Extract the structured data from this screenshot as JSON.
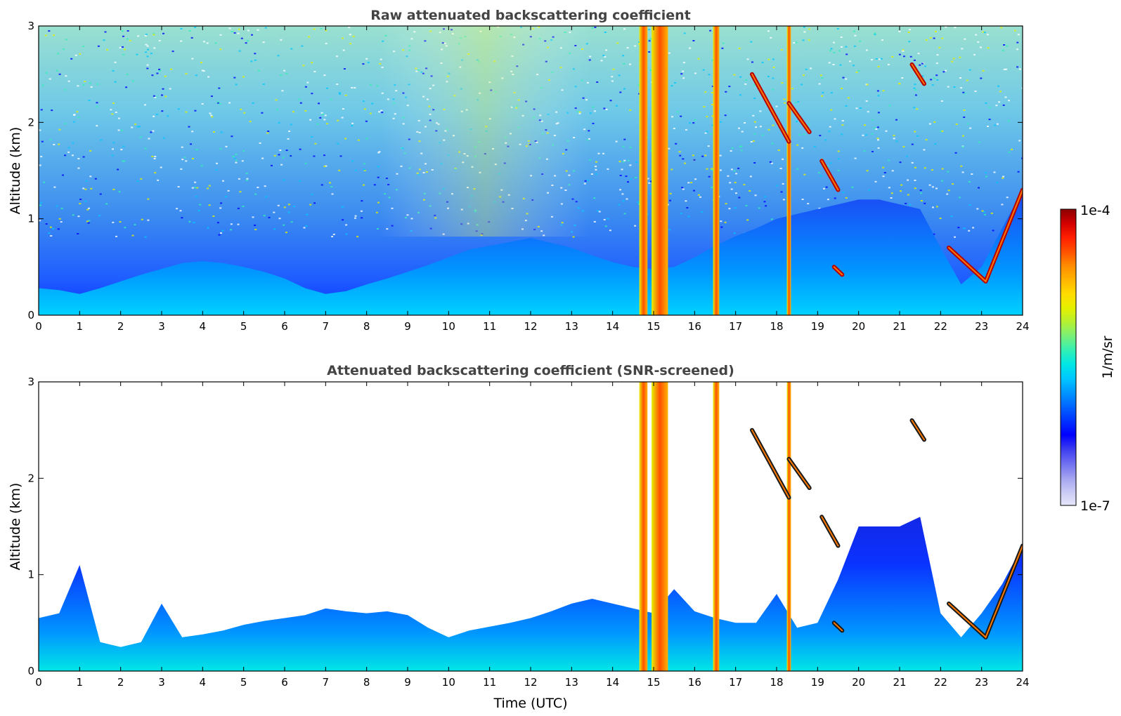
{
  "chart_data": [
    {
      "type": "heatmap",
      "title": "Raw attenuated backscattering coefficient",
      "xlabel": "",
      "ylabel": "Altitude (km)",
      "xlim": [
        0,
        24
      ],
      "ylim": [
        0,
        3
      ],
      "xticks": [
        "0",
        "1",
        "2",
        "3",
        "4",
        "5",
        "6",
        "7",
        "8",
        "9",
        "10",
        "11",
        "12",
        "13",
        "14",
        "15",
        "16",
        "17",
        "18",
        "19",
        "20",
        "21",
        "22",
        "23",
        "24"
      ],
      "yticks": [
        "0",
        "1",
        "2",
        "3"
      ],
      "features": {
        "boundary_layer_top_km": [
          0.28,
          0.26,
          0.22,
          0.28,
          0.35,
          0.42,
          0.48,
          0.54,
          0.56,
          0.54,
          0.5,
          0.45,
          0.38,
          0.28,
          0.22,
          0.25,
          0.32,
          0.38,
          0.45,
          0.52,
          0.6,
          0.68,
          0.72,
          0.76,
          0.8,
          0.75,
          0.7,
          0.62,
          0.55,
          0.5,
          0.48,
          0.5,
          0.6,
          0.72,
          0.82,
          0.9,
          1.0,
          1.05,
          1.1,
          1.15,
          1.2,
          1.2,
          1.15,
          1.1,
          0.7,
          0.32,
          0.5,
          0.9,
          1.3
        ],
        "vertical_bands_utc": [
          [
            14.65,
            14.85
          ],
          [
            14.95,
            15.35
          ],
          [
            16.45,
            16.6
          ],
          [
            18.25,
            18.35
          ]
        ],
        "cloud_segments": [
          {
            "t": [
              17.4,
              18.3
            ],
            "z": [
              2.5,
              1.8
            ]
          },
          {
            "t": [
              18.3,
              18.8
            ],
            "z": [
              2.2,
              1.9
            ]
          },
          {
            "t": [
              19.1,
              19.5
            ],
            "z": [
              1.6,
              1.3
            ]
          },
          {
            "t": [
              19.4,
              19.6
            ],
            "z": [
              0.5,
              0.42
            ]
          },
          {
            "t": [
              21.3,
              21.6
            ],
            "z": [
              2.6,
              2.4
            ]
          },
          {
            "t": [
              22.2,
              24.0
            ],
            "z": [
              0.7,
              0.35,
              1.3
            ]
          }
        ]
      }
    },
    {
      "type": "heatmap",
      "title": "Attenuated backscattering coefficient (SNR-screened)",
      "xlabel": "Time (UTC)",
      "ylabel": "Altitude (km)",
      "xlim": [
        0,
        24
      ],
      "ylim": [
        0,
        3
      ],
      "xticks": [
        "0",
        "1",
        "2",
        "3",
        "4",
        "5",
        "6",
        "7",
        "8",
        "9",
        "10",
        "11",
        "12",
        "13",
        "14",
        "15",
        "16",
        "17",
        "18",
        "19",
        "20",
        "21",
        "22",
        "23",
        "24"
      ],
      "yticks": [
        "0",
        "1",
        "2",
        "3"
      ],
      "features": {
        "screened_top_km": [
          0.55,
          0.6,
          1.1,
          0.3,
          0.25,
          0.3,
          0.7,
          0.35,
          0.38,
          0.42,
          0.48,
          0.52,
          0.55,
          0.58,
          0.65,
          0.62,
          0.6,
          0.62,
          0.58,
          0.45,
          0.35,
          0.42,
          0.46,
          0.5,
          0.55,
          0.62,
          0.7,
          0.75,
          0.7,
          0.65,
          0.6,
          0.85,
          0.62,
          0.55,
          0.5,
          0.5,
          0.8,
          0.45,
          0.5,
          0.95,
          1.5,
          1.5,
          1.5,
          1.6,
          0.6,
          0.35,
          0.6,
          0.9,
          1.3
        ]
      }
    }
  ],
  "colorbar": {
    "max_label": "1e-4",
    "min_label": "1e-7",
    "unit_label": "1/m/sr",
    "colors": [
      "#e6e6fa",
      "#c8c8f5",
      "#a0a0f0",
      "#6e6ef0",
      "#3c3cf0",
      "#0000ff",
      "#0032ff",
      "#0064ff",
      "#0096ff",
      "#00c8ff",
      "#00e6e6",
      "#32f0b4",
      "#78f078",
      "#b4f032",
      "#e6f000",
      "#ffdc00",
      "#ffb400",
      "#ff8c00",
      "#ff5000",
      "#ff1e00",
      "#d20000",
      "#8b0000"
    ]
  }
}
